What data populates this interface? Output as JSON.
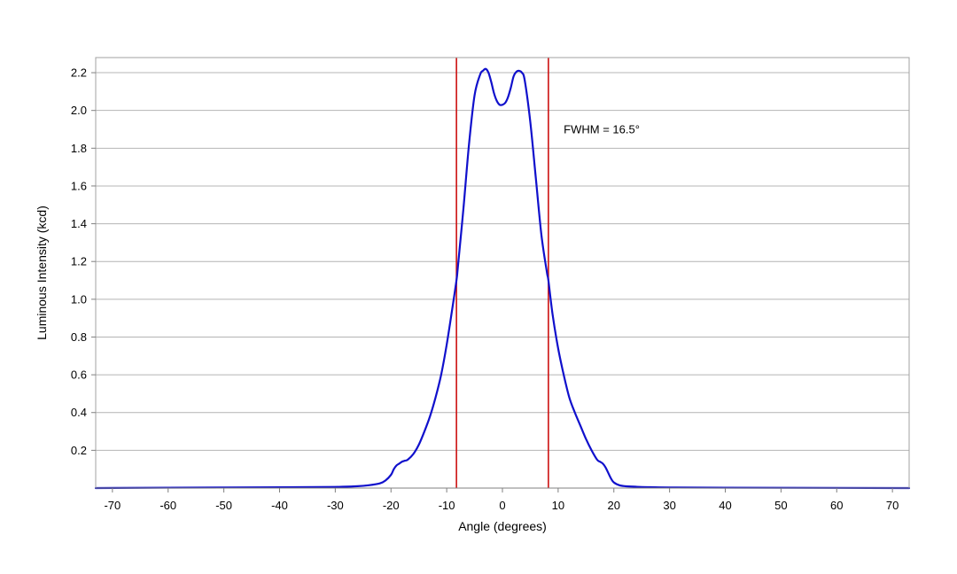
{
  "chart_data": {
    "type": "line",
    "title": "",
    "xlabel": "Angle (degrees)",
    "ylabel": "Luminous Intensity (kcd)",
    "xlim": [
      -73,
      73
    ],
    "ylim": [
      0,
      2.28
    ],
    "x_ticks": [
      -70,
      -60,
      -50,
      -40,
      -30,
      -20,
      -10,
      0,
      10,
      20,
      30,
      40,
      50,
      60,
      70
    ],
    "x_tick_labels": [
      "-70",
      "-60",
      "-50",
      "-40",
      "-30",
      "-20",
      "-10",
      "0",
      "10",
      "20",
      "30",
      "40",
      "50",
      "60",
      "70"
    ],
    "y_ticks": [
      0.2,
      0.4,
      0.6,
      0.8,
      1.0,
      1.2,
      1.4,
      1.6,
      1.8,
      2.0,
      2.2
    ],
    "y_tick_labels": [
      "0.2",
      "0.4",
      "0.6",
      "0.8",
      "1.0",
      "1.2",
      "1.4",
      "1.6",
      "1.8",
      "2.0",
      "2.2"
    ],
    "grid": "horizontal",
    "legend": "none",
    "series": [
      {
        "color": "#1010cc",
        "x": [
          -73,
          -60,
          -40,
          -30,
          -26,
          -24,
          -22,
          -21,
          -20,
          -19.5,
          -19,
          -18.5,
          -18,
          -17.5,
          -17,
          -16,
          -15,
          -14,
          -13,
          -12,
          -11,
          -10,
          -9,
          -8.25,
          -8,
          -7,
          -6,
          -5,
          -4,
          -3.5,
          -3,
          -2.5,
          -2,
          -1.5,
          -1,
          -0.5,
          0,
          0.5,
          1,
          1.5,
          2,
          2.5,
          3,
          3.5,
          4,
          5,
          6,
          7,
          8,
          8.25,
          9,
          10,
          11,
          12,
          13,
          14,
          15,
          16,
          17,
          17.5,
          18,
          18.5,
          19,
          19.5,
          20,
          21,
          22,
          24,
          26,
          30,
          40,
          60,
          73
        ],
        "y": [
          0.0,
          0.002,
          0.004,
          0.006,
          0.01,
          0.015,
          0.025,
          0.04,
          0.07,
          0.1,
          0.12,
          0.13,
          0.14,
          0.145,
          0.15,
          0.18,
          0.23,
          0.3,
          0.38,
          0.48,
          0.6,
          0.76,
          0.95,
          1.1,
          1.17,
          1.48,
          1.82,
          2.08,
          2.19,
          2.21,
          2.22,
          2.2,
          2.15,
          2.09,
          2.05,
          2.03,
          2.03,
          2.04,
          2.07,
          2.12,
          2.18,
          2.205,
          2.21,
          2.2,
          2.16,
          1.94,
          1.64,
          1.34,
          1.14,
          1.1,
          0.92,
          0.74,
          0.6,
          0.48,
          0.4,
          0.33,
          0.26,
          0.2,
          0.15,
          0.14,
          0.13,
          0.11,
          0.08,
          0.05,
          0.03,
          0.015,
          0.01,
          0.007,
          0.005,
          0.003,
          0.002,
          0.001,
          0.0
        ]
      }
    ],
    "vertical_lines": [
      {
        "x": -8.25,
        "color": "#cc1111"
      },
      {
        "x": 8.25,
        "color": "#cc1111"
      }
    ],
    "annotations": [
      {
        "text": "FWHM = 16.5°",
        "x": 11,
        "y": 1.88
      }
    ]
  }
}
